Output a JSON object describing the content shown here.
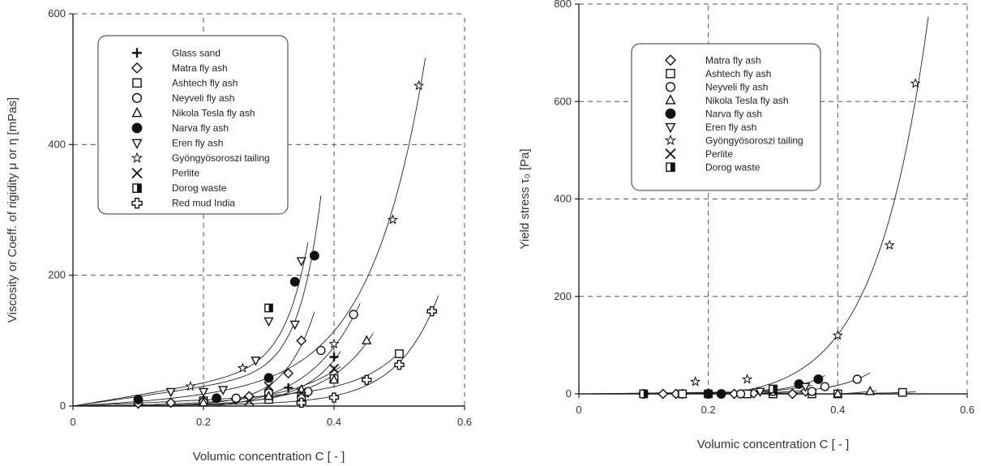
{
  "chart_data": [
    {
      "type": "scatter",
      "id": "left",
      "xlabel": "Volumic concentration C [ - ]",
      "ylabel": "Viscosity or Coeff. of rigidity μ or η [mPas]",
      "xlim": [
        0,
        0.6
      ],
      "ylim": [
        0,
        600
      ],
      "xticks": [
        "0",
        "0.2",
        "0.4",
        "0.6"
      ],
      "yticks": [
        "0",
        "200",
        "400",
        "600"
      ],
      "grid": true,
      "legend_position": "top-left",
      "series": [
        {
          "name": "Glass sand",
          "marker": "plus",
          "points": [
            [
              0.1,
              3
            ],
            [
              0.2,
              6
            ],
            [
              0.3,
              12
            ],
            [
              0.33,
              28
            ],
            [
              0.36,
              20
            ],
            [
              0.4,
              75
            ]
          ]
        },
        {
          "name": "Matra fly ash",
          "marker": "diamond",
          "points": [
            [
              0.1,
              4
            ],
            [
              0.15,
              5
            ],
            [
              0.2,
              8
            ],
            [
              0.25,
              10
            ],
            [
              0.27,
              15
            ],
            [
              0.33,
              50
            ],
            [
              0.35,
              100
            ]
          ]
        },
        {
          "name": "Ashtech fly ash",
          "marker": "square",
          "points": [
            [
              0.2,
              8
            ],
            [
              0.3,
              10
            ],
            [
              0.35,
              15
            ],
            [
              0.4,
              42
            ],
            [
              0.5,
              80
            ]
          ]
        },
        {
          "name": "Neyveli fly ash",
          "marker": "circle",
          "points": [
            [
              0.2,
              6
            ],
            [
              0.25,
              12
            ],
            [
              0.3,
              20
            ],
            [
              0.36,
              22
            ],
            [
              0.38,
              85
            ],
            [
              0.43,
              140
            ]
          ]
        },
        {
          "name": "Nikola Tesla fly ash",
          "marker": "triangle-up",
          "points": [
            [
              0.2,
              5
            ],
            [
              0.3,
              15
            ],
            [
              0.35,
              25
            ],
            [
              0.4,
              40
            ],
            [
              0.45,
              100
            ]
          ]
        },
        {
          "name": "Narva fly ash",
          "marker": "filled-circle",
          "points": [
            [
              0.1,
              10
            ],
            [
              0.22,
              12
            ],
            [
              0.3,
              43
            ],
            [
              0.34,
              190
            ],
            [
              0.37,
              230
            ]
          ]
        },
        {
          "name": "Eren fly ash",
          "marker": "triangle-down",
          "points": [
            [
              0.15,
              22
            ],
            [
              0.2,
              22
            ],
            [
              0.23,
              25
            ],
            [
              0.28,
              70
            ],
            [
              0.3,
              130
            ],
            [
              0.34,
              125
            ],
            [
              0.35,
              222
            ]
          ]
        },
        {
          "name": "Gyöngyösoroszi tailing",
          "marker": "star",
          "points": [
            [
              0.18,
              30
            ],
            [
              0.26,
              58
            ],
            [
              0.4,
              95
            ],
            [
              0.49,
              285
            ],
            [
              0.53,
              490
            ]
          ]
        },
        {
          "name": "Perlite",
          "marker": "x",
          "points": [
            [
              0.27,
              8
            ],
            [
              0.3,
              30
            ],
            [
              0.35,
              20
            ],
            [
              0.4,
              57
            ]
          ]
        },
        {
          "name": "Dorog waste",
          "marker": "half-filled-square",
          "points": [
            [
              0.3,
              150
            ]
          ]
        },
        {
          "name": "Red mud India",
          "marker": "open-cross",
          "points": [
            [
              0.35,
              5
            ],
            [
              0.4,
              13
            ],
            [
              0.45,
              40
            ],
            [
              0.5,
              63
            ],
            [
              0.55,
              145
            ]
          ]
        }
      ]
    },
    {
      "type": "scatter",
      "id": "right",
      "xlabel": "Volumic concentration C [ - ]",
      "ylabel": "Yield stress τ₀ [Pa]",
      "xlim": [
        0,
        0.6
      ],
      "ylim": [
        0,
        800
      ],
      "xticks": [
        "0",
        "0.2",
        "0.4",
        "0.6"
      ],
      "yticks": [
        "0",
        "200",
        "400",
        "600",
        "800"
      ],
      "grid": true,
      "legend_position": "top-left",
      "series": [
        {
          "name": "Matra fly ash",
          "marker": "diamond",
          "points": [
            [
              0.13,
              0
            ],
            [
              0.15,
              0
            ],
            [
              0.16,
              0
            ],
            [
              0.2,
              1
            ],
            [
              0.24,
              0
            ],
            [
              0.27,
              1
            ],
            [
              0.33,
              0
            ],
            [
              0.35,
              5
            ]
          ]
        },
        {
          "name": "Ashtech fly ash",
          "marker": "square",
          "points": [
            [
              0.16,
              0
            ],
            [
              0.2,
              0
            ],
            [
              0.26,
              0
            ],
            [
              0.3,
              0
            ],
            [
              0.36,
              0
            ],
            [
              0.4,
              0
            ],
            [
              0.5,
              3
            ]
          ]
        },
        {
          "name": "Neyveli fly ash",
          "marker": "circle",
          "points": [
            [
              0.25,
              0
            ],
            [
              0.3,
              5
            ],
            [
              0.36,
              5
            ],
            [
              0.38,
              15
            ],
            [
              0.43,
              30
            ]
          ]
        },
        {
          "name": "Nikola Tesla fly ash",
          "marker": "triangle-up",
          "points": [
            [
              0.4,
              0
            ],
            [
              0.45,
              5
            ]
          ]
        },
        {
          "name": "Narva fly ash",
          "marker": "filled-circle",
          "points": [
            [
              0.1,
              0
            ],
            [
              0.2,
              0
            ],
            [
              0.22,
              0
            ],
            [
              0.34,
              20
            ],
            [
              0.37,
              30
            ]
          ]
        },
        {
          "name": "Eren fly ash",
          "marker": "triangle-down",
          "points": [
            [
              0.28,
              5
            ],
            [
              0.35,
              15
            ]
          ]
        },
        {
          "name": "Gyöngyösoroszi tailing",
          "marker": "star",
          "points": [
            [
              0.18,
              25
            ],
            [
              0.26,
              30
            ],
            [
              0.4,
              120
            ],
            [
              0.48,
              305
            ],
            [
              0.52,
              637
            ]
          ]
        },
        {
          "name": "Perlite",
          "marker": "x",
          "points": [
            [
              0.3,
              5
            ]
          ]
        },
        {
          "name": "Dorog waste",
          "marker": "half-filled-square",
          "points": [
            [
              0.1,
              0
            ],
            [
              0.3,
              10
            ]
          ]
        }
      ]
    }
  ]
}
